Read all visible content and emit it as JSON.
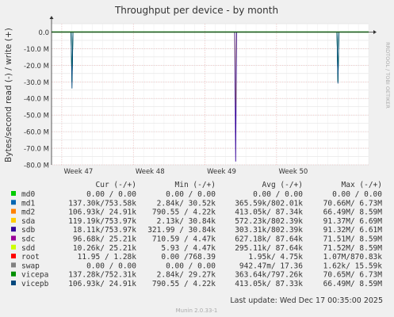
{
  "side_label": "RRDTOOL / TOBI OETIKER",
  "footer": "Munin 2.0.33-1",
  "last_update": "Last update:  Wed Dec 17 00:35:00 2025",
  "legend_headers": [
    "Cur (-/+)",
    "Min (-/+)",
    "Avg (-/+)",
    "Max (-/+)"
  ],
  "legend_rows": [
    {
      "name": "md0",
      "color": "#00cc00",
      "cur": "0.00 /  0.00",
      "min": "0.00 /  0.00",
      "avg": "0.00 /  0.00",
      "max": "0.00 /  0.00"
    },
    {
      "name": "md1",
      "color": "#0066b3",
      "cur": "137.30k/753.58k",
      "min": "2.84k/ 30.52k",
      "avg": "365.59k/802.01k",
      "max": "70.66M/  6.73M"
    },
    {
      "name": "md2",
      "color": "#ff8000",
      "cur": "106.93k/ 24.91k",
      "min": "790.55 /  4.22k",
      "avg": "413.05k/ 87.34k",
      "max": "66.49M/  8.59M"
    },
    {
      "name": "sda",
      "color": "#ffcc00",
      "cur": "119.19k/753.97k",
      "min": "2.13k/ 30.84k",
      "avg": "572.23k/802.39k",
      "max": "91.37M/  6.69M"
    },
    {
      "name": "sdb",
      "color": "#330099",
      "cur": "18.11k/753.97k",
      "min": "321.99 / 30.84k",
      "avg": "303.31k/802.39k",
      "max": "91.32M/  6.61M"
    },
    {
      "name": "sdc",
      "color": "#990099",
      "cur": "96.68k/ 25.21k",
      "min": "710.59 /  4.47k",
      "avg": "627.18k/ 87.64k",
      "max": "71.51M/  8.59M"
    },
    {
      "name": "sdd",
      "color": "#ccff00",
      "cur": "10.26k/ 25.21k",
      "min": "5.93 /  4.47k",
      "avg": "295.11k/ 87.64k",
      "max": "71.52M/  8.59M"
    },
    {
      "name": "root",
      "color": "#ff0000",
      "cur": "11.95 /  1.28k",
      "min": "0.00 /768.39",
      "avg": "1.95k/  4.75k",
      "max": "1.07M/870.83k"
    },
    {
      "name": "swap",
      "color": "#808080",
      "cur": "0.00 /  0.00",
      "min": "0.00 /  0.00",
      "avg": "942.47m/ 17.36",
      "max": "1.62k/ 15.59k"
    },
    {
      "name": "vicepa",
      "color": "#008f00",
      "cur": "137.28k/752.31k",
      "min": "2.84k/ 29.27k",
      "avg": "363.64k/797.26k",
      "max": "70.65M/  6.73M"
    },
    {
      "name": "vicepb",
      "color": "#00487d",
      "cur": "106.93k/ 24.91k",
      "min": "790.55 /  4.22k",
      "avg": "413.05k/ 87.33k",
      "max": "66.49M/  8.59M"
    }
  ],
  "chart_data": {
    "type": "line",
    "title": "Throughput per device - by month",
    "ylabel": "Bytes/second read (-) / write (+)",
    "ylim": [
      -80,
      5
    ],
    "y_unit": "M",
    "y_ticks": [
      0,
      -10,
      -20,
      -30,
      -40,
      -50,
      -60,
      -70,
      -80
    ],
    "y_tick_labels": [
      "0.0",
      "-10.0 M",
      "-20.0 M",
      "-30.0 M",
      "-40.0 M",
      "-50.0 M",
      "-60.0 M",
      "-70.0 M",
      "-80.0 M"
    ],
    "x_range": [
      "2025-11-16",
      "2025-12-17"
    ],
    "x_ticks": [
      {
        "date": "2025-11-17",
        "label": "Week 47"
      },
      {
        "date": "2025-11-24",
        "label": "Week 48"
      },
      {
        "date": "2025-12-01",
        "label": "Week 49"
      },
      {
        "date": "2025-12-08",
        "label": "Week 50"
      }
    ],
    "grid": true,
    "series": [
      {
        "name": "md1",
        "color": "#0066b3",
        "spikes": [
          {
            "date": "2025-11-18",
            "value": -30
          },
          {
            "date": "2025-12-14",
            "value": -30
          }
        ]
      },
      {
        "name": "sda",
        "color": "#ffcc00",
        "spikes": [
          {
            "date": "2025-12-04",
            "value": -60
          }
        ]
      },
      {
        "name": "sdb",
        "color": "#330099",
        "spikes": [
          {
            "date": "2025-12-04",
            "value": -78
          }
        ]
      },
      {
        "name": "vicepa",
        "color": "#008f00",
        "spikes": [
          {
            "date": "2025-11-18",
            "value": -30
          },
          {
            "date": "2025-12-14",
            "value": -30
          }
        ]
      },
      {
        "name": "vicepb",
        "color": "#00487d",
        "spikes": [
          {
            "date": "2025-11-18",
            "value": -34
          },
          {
            "date": "2025-12-14",
            "value": -31
          }
        ]
      }
    ]
  }
}
